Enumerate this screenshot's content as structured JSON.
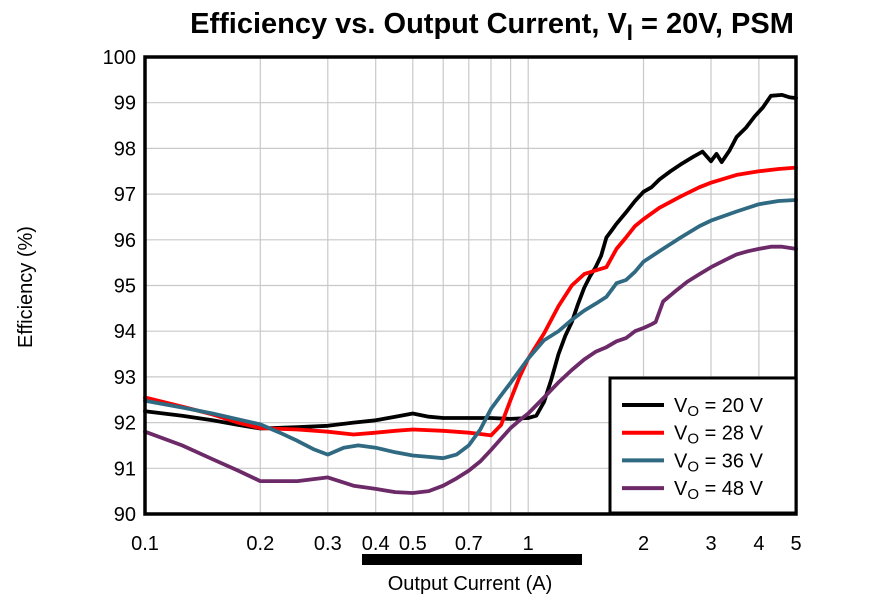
{
  "background_color": "#ffffff",
  "chart_data": {
    "type": "line",
    "title_parts": [
      {
        "t": "Efficiency vs. Output Current, V"
      },
      {
        "t": "I",
        "sub": true
      },
      {
        "t": " = 20V, PSM"
      }
    ],
    "xlabel": "Output Current (A)",
    "ylabel": "Efficiency (%)",
    "x_scale": "log",
    "xlim": [
      0.1,
      5
    ],
    "ylim": [
      90,
      100
    ],
    "x_tick_values": [
      0.1,
      0.2,
      0.3,
      0.4,
      0.5,
      0.7,
      1,
      2,
      3,
      4,
      5
    ],
    "x_tick_labels": [
      "0.1",
      "0.2",
      "0.3",
      "0.4",
      "0.5",
      "0.7",
      "1",
      "2",
      "3",
      "4",
      "5"
    ],
    "x_gridline_values": [
      0.2,
      0.3,
      0.4,
      0.5,
      0.6,
      0.7,
      0.8,
      0.9,
      1,
      2,
      3,
      4
    ],
    "y_tick_values": [
      90,
      91,
      92,
      93,
      94,
      95,
      96,
      97,
      98,
      99,
      100
    ],
    "grid": true,
    "grid_color": "#c9c9c9",
    "frame_color": "#000000",
    "legend": {
      "position": "inside-bottom-right"
    },
    "annotations": {
      "x_axis_highlight_bar": true
    },
    "series": [
      {
        "label_parts": [
          {
            "t": "V"
          },
          {
            "t": "O",
            "sub": true
          },
          {
            "t": " = 20 V"
          }
        ],
        "color": "#000000",
        "points": [
          [
            0.1,
            92.25
          ],
          [
            0.125,
            92.15
          ],
          [
            0.15,
            92.05
          ],
          [
            0.175,
            91.95
          ],
          [
            0.2,
            91.87
          ],
          [
            0.25,
            91.9
          ],
          [
            0.3,
            91.93
          ],
          [
            0.35,
            92.0
          ],
          [
            0.4,
            92.05
          ],
          [
            0.45,
            92.13
          ],
          [
            0.5,
            92.2
          ],
          [
            0.55,
            92.13
          ],
          [
            0.6,
            92.1
          ],
          [
            0.7,
            92.1
          ],
          [
            0.8,
            92.1
          ],
          [
            0.9,
            92.08
          ],
          [
            1.0,
            92.1
          ],
          [
            1.05,
            92.15
          ],
          [
            1.1,
            92.45
          ],
          [
            1.15,
            92.95
          ],
          [
            1.2,
            93.5
          ],
          [
            1.25,
            93.9
          ],
          [
            1.3,
            94.2
          ],
          [
            1.35,
            94.6
          ],
          [
            1.4,
            94.95
          ],
          [
            1.45,
            95.2
          ],
          [
            1.5,
            95.4
          ],
          [
            1.55,
            95.65
          ],
          [
            1.6,
            96.05
          ],
          [
            1.65,
            96.2
          ],
          [
            1.7,
            96.35
          ],
          [
            1.8,
            96.6
          ],
          [
            1.9,
            96.85
          ],
          [
            2.0,
            97.05
          ],
          [
            2.1,
            97.15
          ],
          [
            2.2,
            97.32
          ],
          [
            2.35,
            97.5
          ],
          [
            2.5,
            97.65
          ],
          [
            2.7,
            97.82
          ],
          [
            2.85,
            97.93
          ],
          [
            3.0,
            97.72
          ],
          [
            3.1,
            97.88
          ],
          [
            3.2,
            97.7
          ],
          [
            3.35,
            97.95
          ],
          [
            3.5,
            98.25
          ],
          [
            3.7,
            98.45
          ],
          [
            3.9,
            98.7
          ],
          [
            4.1,
            98.9
          ],
          [
            4.3,
            99.15
          ],
          [
            4.6,
            99.17
          ],
          [
            4.8,
            99.12
          ],
          [
            5.0,
            99.1
          ]
        ]
      },
      {
        "label_parts": [
          {
            "t": "V"
          },
          {
            "t": "O",
            "sub": true
          },
          {
            "t": " = 28 V"
          }
        ],
        "color": "#ff0000",
        "points": [
          [
            0.1,
            92.55
          ],
          [
            0.125,
            92.35
          ],
          [
            0.15,
            92.18
          ],
          [
            0.175,
            92.0
          ],
          [
            0.2,
            91.88
          ],
          [
            0.25,
            91.85
          ],
          [
            0.3,
            91.8
          ],
          [
            0.35,
            91.74
          ],
          [
            0.4,
            91.78
          ],
          [
            0.45,
            91.82
          ],
          [
            0.5,
            91.85
          ],
          [
            0.6,
            91.82
          ],
          [
            0.7,
            91.78
          ],
          [
            0.75,
            91.75
          ],
          [
            0.8,
            91.72
          ],
          [
            0.85,
            91.95
          ],
          [
            0.9,
            92.5
          ],
          [
            0.95,
            93.0
          ],
          [
            1.0,
            93.4
          ],
          [
            1.1,
            93.95
          ],
          [
            1.2,
            94.55
          ],
          [
            1.3,
            95.0
          ],
          [
            1.4,
            95.25
          ],
          [
            1.5,
            95.33
          ],
          [
            1.6,
            95.4
          ],
          [
            1.7,
            95.8
          ],
          [
            1.8,
            96.05
          ],
          [
            1.9,
            96.3
          ],
          [
            2.0,
            96.45
          ],
          [
            2.2,
            96.7
          ],
          [
            2.5,
            96.95
          ],
          [
            2.8,
            97.15
          ],
          [
            3.0,
            97.25
          ],
          [
            3.5,
            97.42
          ],
          [
            4.0,
            97.5
          ],
          [
            4.5,
            97.55
          ],
          [
            5.0,
            97.58
          ]
        ]
      },
      {
        "label_parts": [
          {
            "t": "V"
          },
          {
            "t": "O",
            "sub": true
          },
          {
            "t": " = 36 V"
          }
        ],
        "color": "#306a82",
        "points": [
          [
            0.1,
            92.48
          ],
          [
            0.125,
            92.33
          ],
          [
            0.15,
            92.2
          ],
          [
            0.175,
            92.07
          ],
          [
            0.2,
            91.96
          ],
          [
            0.225,
            91.78
          ],
          [
            0.25,
            91.6
          ],
          [
            0.275,
            91.42
          ],
          [
            0.3,
            91.3
          ],
          [
            0.33,
            91.45
          ],
          [
            0.36,
            91.5
          ],
          [
            0.4,
            91.45
          ],
          [
            0.45,
            91.35
          ],
          [
            0.5,
            91.28
          ],
          [
            0.55,
            91.25
          ],
          [
            0.6,
            91.22
          ],
          [
            0.65,
            91.3
          ],
          [
            0.7,
            91.5
          ],
          [
            0.75,
            91.85
          ],
          [
            0.8,
            92.3
          ],
          [
            0.85,
            92.6
          ],
          [
            0.9,
            92.87
          ],
          [
            1.0,
            93.4
          ],
          [
            1.1,
            93.8
          ],
          [
            1.2,
            94.0
          ],
          [
            1.3,
            94.25
          ],
          [
            1.4,
            94.45
          ],
          [
            1.5,
            94.6
          ],
          [
            1.6,
            94.75
          ],
          [
            1.7,
            95.05
          ],
          [
            1.8,
            95.12
          ],
          [
            1.9,
            95.3
          ],
          [
            2.0,
            95.52
          ],
          [
            2.2,
            95.75
          ],
          [
            2.5,
            96.05
          ],
          [
            2.8,
            96.3
          ],
          [
            3.0,
            96.42
          ],
          [
            3.5,
            96.62
          ],
          [
            4.0,
            96.78
          ],
          [
            4.5,
            96.85
          ],
          [
            5.0,
            96.87
          ]
        ]
      },
      {
        "label_parts": [
          {
            "t": "V"
          },
          {
            "t": "O",
            "sub": true
          },
          {
            "t": " = 48 V"
          }
        ],
        "color": "#6d2a68",
        "points": [
          [
            0.1,
            91.8
          ],
          [
            0.125,
            91.5
          ],
          [
            0.15,
            91.2
          ],
          [
            0.175,
            90.95
          ],
          [
            0.2,
            90.72
          ],
          [
            0.25,
            90.72
          ],
          [
            0.3,
            90.8
          ],
          [
            0.35,
            90.62
          ],
          [
            0.4,
            90.55
          ],
          [
            0.45,
            90.48
          ],
          [
            0.5,
            90.46
          ],
          [
            0.55,
            90.5
          ],
          [
            0.6,
            90.62
          ],
          [
            0.65,
            90.78
          ],
          [
            0.7,
            90.95
          ],
          [
            0.75,
            91.15
          ],
          [
            0.8,
            91.4
          ],
          [
            0.85,
            91.65
          ],
          [
            0.9,
            91.88
          ],
          [
            0.95,
            92.05
          ],
          [
            1.0,
            92.2
          ],
          [
            1.1,
            92.55
          ],
          [
            1.2,
            92.88
          ],
          [
            1.3,
            93.15
          ],
          [
            1.4,
            93.38
          ],
          [
            1.5,
            93.55
          ],
          [
            1.6,
            93.65
          ],
          [
            1.7,
            93.78
          ],
          [
            1.8,
            93.85
          ],
          [
            1.9,
            94.0
          ],
          [
            2.0,
            94.07
          ],
          [
            2.1,
            94.15
          ],
          [
            2.15,
            94.2
          ],
          [
            2.25,
            94.65
          ],
          [
            2.4,
            94.85
          ],
          [
            2.6,
            95.08
          ],
          [
            2.8,
            95.25
          ],
          [
            3.0,
            95.4
          ],
          [
            3.25,
            95.55
          ],
          [
            3.5,
            95.68
          ],
          [
            3.75,
            95.75
          ],
          [
            4.0,
            95.8
          ],
          [
            4.3,
            95.85
          ],
          [
            4.6,
            95.85
          ],
          [
            5.0,
            95.8
          ]
        ]
      }
    ]
  }
}
